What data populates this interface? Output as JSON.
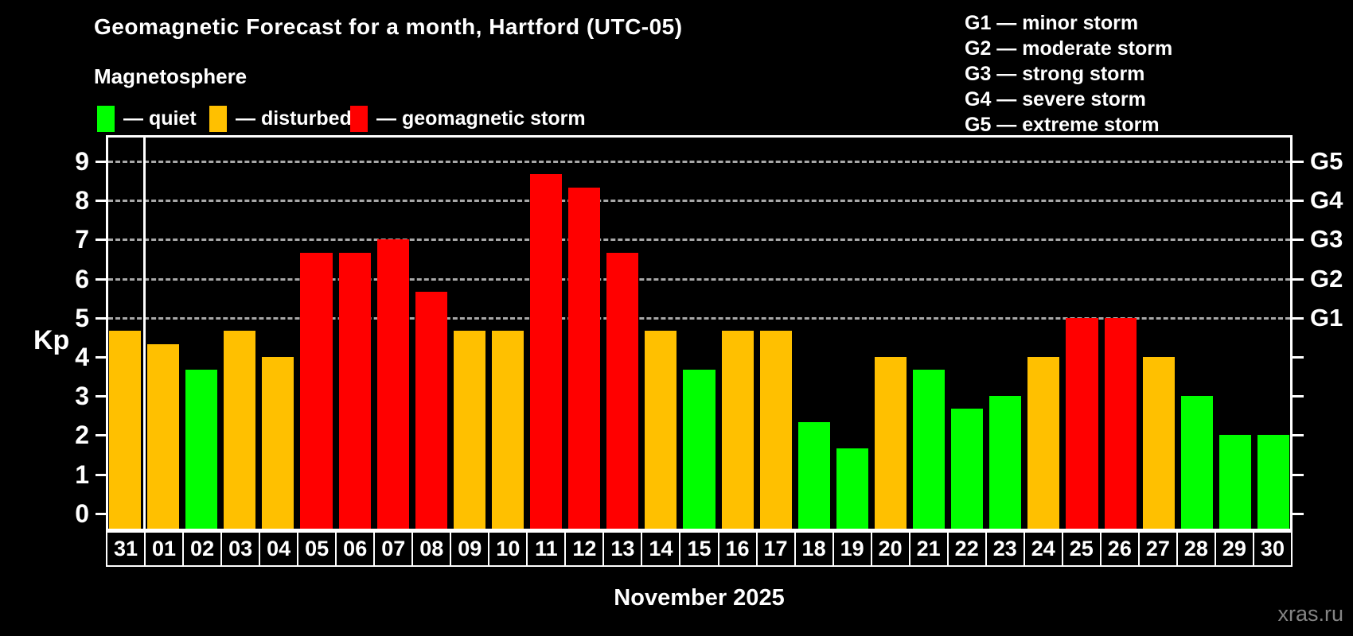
{
  "header": {
    "title": "Geomagnetic Forecast for a month, Hartford (UTC-05)",
    "subtitle": "Magnetosphere"
  },
  "legend": {
    "items": [
      {
        "key": "quiet",
        "label": "— quiet",
        "color": "#00ff00"
      },
      {
        "key": "disturbed",
        "label": "— disturbed",
        "color": "#ffc000"
      },
      {
        "key": "storm",
        "label": "— geomagnetic storm",
        "color": "#ff0000"
      }
    ]
  },
  "storm_scale_legend": {
    "items": [
      {
        "label": "G1 — minor storm"
      },
      {
        "label": "G2 — moderate storm"
      },
      {
        "label": "G3 — strong storm"
      },
      {
        "label": "G4 — severe storm"
      },
      {
        "label": "G5 — extreme storm"
      }
    ]
  },
  "watermark": "xras.ru",
  "chart_data": {
    "type": "bar",
    "title": "Geomagnetic Forecast for a month, Hartford (UTC-05)",
    "ylabel": "Kp",
    "xlabel": "November 2025",
    "ylim": [
      0,
      9
    ],
    "yticks": [
      0,
      1,
      2,
      3,
      4,
      5,
      6,
      7,
      8,
      9
    ],
    "grid_levels": [
      5,
      6,
      7,
      8,
      9
    ],
    "grid_style": "dashed gray, horizontal, only at Kp 5-9",
    "right_axis": [
      {
        "kp": 5,
        "label": "G1"
      },
      {
        "kp": 6,
        "label": "G2"
      },
      {
        "kp": 7,
        "label": "G3"
      },
      {
        "kp": 8,
        "label": "G4"
      },
      {
        "kp": 9,
        "label": "G5"
      }
    ],
    "categories": [
      "31",
      "01",
      "02",
      "03",
      "04",
      "05",
      "06",
      "07",
      "08",
      "09",
      "10",
      "11",
      "12",
      "13",
      "14",
      "15",
      "16",
      "17",
      "18",
      "19",
      "20",
      "21",
      "22",
      "23",
      "24",
      "25",
      "26",
      "27",
      "28",
      "29",
      "30"
    ],
    "values": [
      4.67,
      4.33,
      3.67,
      4.67,
      4,
      6.67,
      6.67,
      7,
      5.67,
      4.67,
      4.67,
      8.67,
      8.33,
      6.67,
      4.67,
      3.67,
      4.67,
      4.67,
      2.33,
      1.67,
      4,
      3.67,
      2.67,
      3,
      4,
      5,
      5,
      4,
      3,
      2,
      2
    ],
    "states": [
      "disturbed",
      "disturbed",
      "quiet",
      "disturbed",
      "disturbed",
      "storm",
      "storm",
      "storm",
      "storm",
      "disturbed",
      "disturbed",
      "storm",
      "storm",
      "storm",
      "disturbed",
      "quiet",
      "disturbed",
      "disturbed",
      "quiet",
      "quiet",
      "disturbed",
      "quiet",
      "quiet",
      "quiet",
      "disturbed",
      "storm",
      "storm",
      "disturbed",
      "quiet",
      "quiet",
      "quiet"
    ],
    "state_colors": {
      "quiet": "#00ff00",
      "disturbed": "#ffc000",
      "storm": "#ff0000"
    },
    "month_separator_after_index": 0
  }
}
